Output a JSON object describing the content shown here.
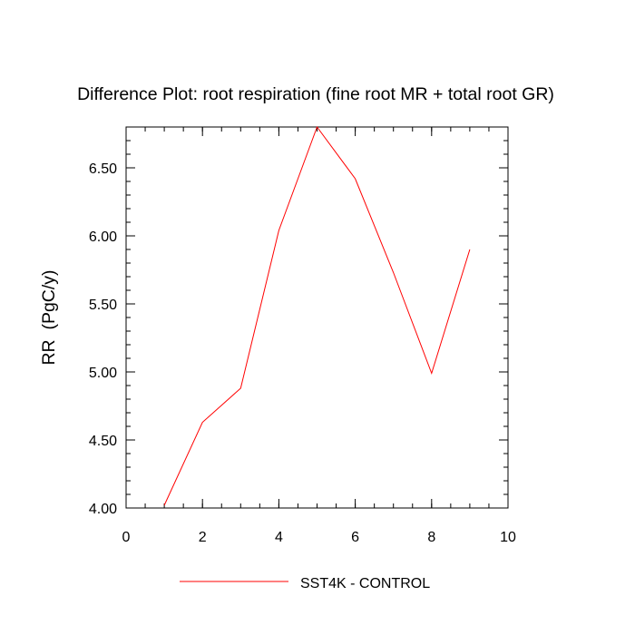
{
  "chart_data": {
    "type": "line",
    "title": "Difference Plot: root respiration (fine root MR + total root GR)",
    "xlabel": "",
    "ylabel": "RR  (PgC/y)",
    "xlim": [
      0,
      10
    ],
    "ylim": [
      4.0,
      6.8
    ],
    "x_ticks": [
      "0",
      "2",
      "4",
      "6",
      "8",
      "10"
    ],
    "y_ticks": [
      "4.00",
      "4.50",
      "5.00",
      "5.50",
      "6.00",
      "6.50"
    ],
    "grid": false,
    "legend_position": "bottom",
    "series": [
      {
        "name": "SST4K - CONTROL",
        "color": "#ff0000",
        "x": [
          1,
          2,
          3,
          4,
          5,
          6,
          7,
          8,
          9
        ],
        "values": [
          4.02,
          4.63,
          4.88,
          6.04,
          6.8,
          6.42,
          5.73,
          4.99,
          5.9
        ]
      }
    ]
  }
}
